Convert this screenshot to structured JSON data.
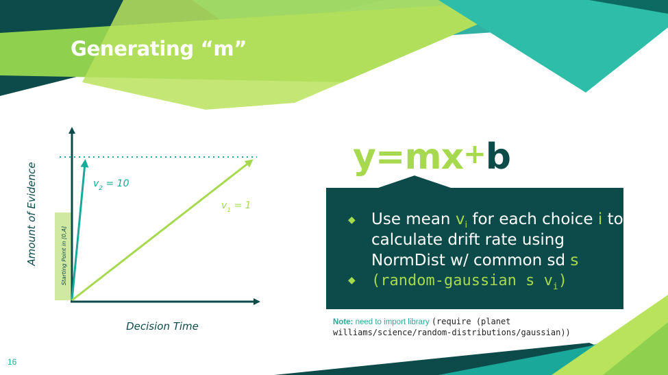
{
  "slide": {
    "title": "Generating “m”",
    "page_number": "16",
    "colors": {
      "dark_teal": "#0d4a4a",
      "teal": "#2aa79b",
      "lime": "#a7d94e",
      "light_lime": "#c2e86a"
    }
  },
  "diagram": {
    "y_axis_label": "Amount of Evidence",
    "x_axis_label": "Decision Time",
    "start_region_label": "Starting Point in [0,A]",
    "v2_label": "v",
    "v2_sub": "2",
    "v2_value": " = 10",
    "v1_label": "v",
    "v1_sub": "1",
    "v1_value": " = 1"
  },
  "equation": {
    "y": "y",
    "eq": "=",
    "mx": "mx",
    "plus": "+",
    "b": "b"
  },
  "callout": {
    "bullet1": {
      "t1": "Use mean ",
      "v": "v",
      "v_sub": "i",
      "t2": " for each choice ",
      "i": "i",
      "t3": " to",
      "line2": "calculate drift rate using",
      "line3a": "NormDist w/ common sd ",
      "s": "s"
    },
    "bullet2": {
      "code": "(random-gaussian s v",
      "code_sub": "i",
      "code_end": ")"
    }
  },
  "note": {
    "label": "Note:",
    "text": " need to import library ",
    "code_line1": "(require (planet",
    "code_line2": "williams/science/random-distributions/gaussian))"
  }
}
